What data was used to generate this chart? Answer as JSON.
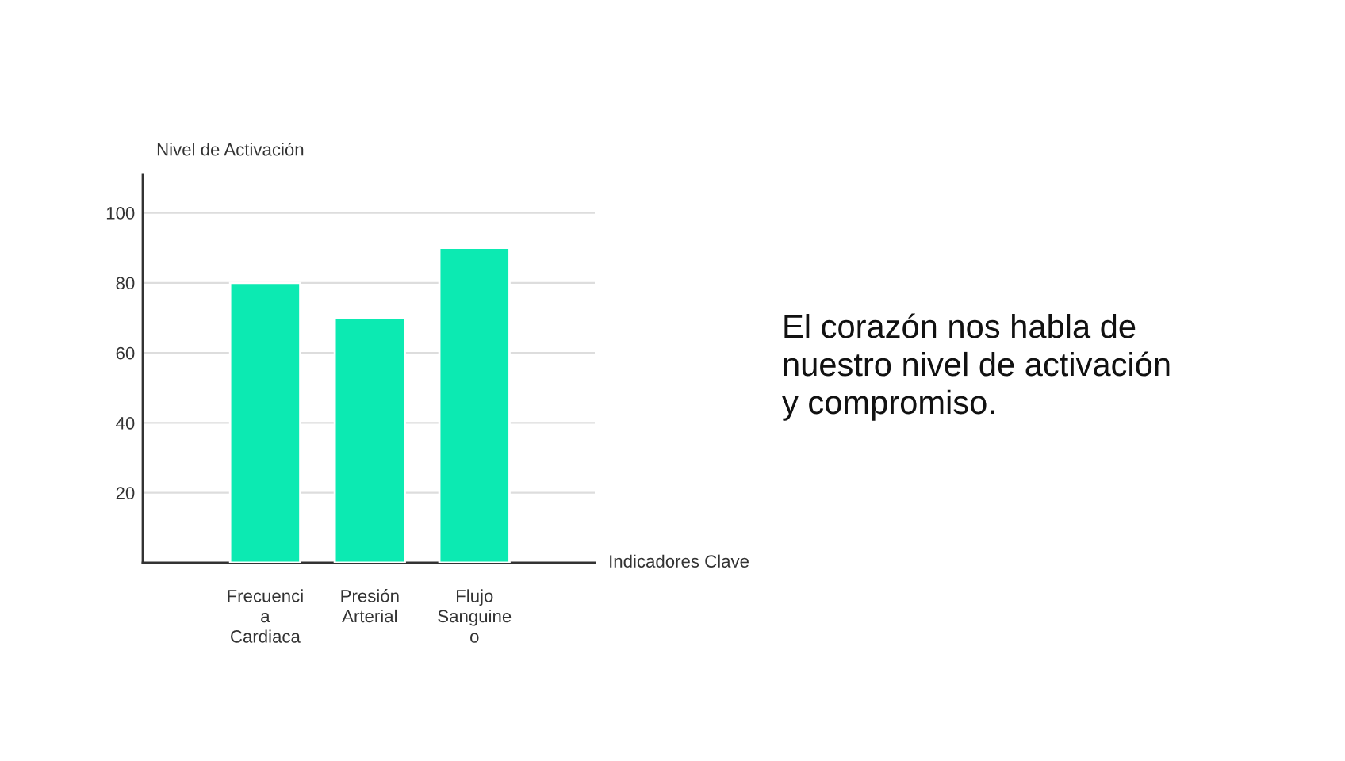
{
  "chart_data": {
    "type": "bar",
    "xlabel": "Indicadores Clave",
    "ylabel": "Nivel de Activación",
    "categories": [
      "Frecuenci\na\nCardiaca",
      "Presión\nArterial",
      "Flujo\nSanguine\no"
    ],
    "values": [
      80,
      70,
      90
    ],
    "color": "#0ceab2",
    "ylim": [
      0,
      111
    ],
    "yticks": [
      20,
      40,
      60,
      80,
      100
    ],
    "grid": "y",
    "legend": false,
    "annotations": [
      "El corazón nos habla de\nnuestro nivel de activación\ny compromiso."
    ]
  }
}
